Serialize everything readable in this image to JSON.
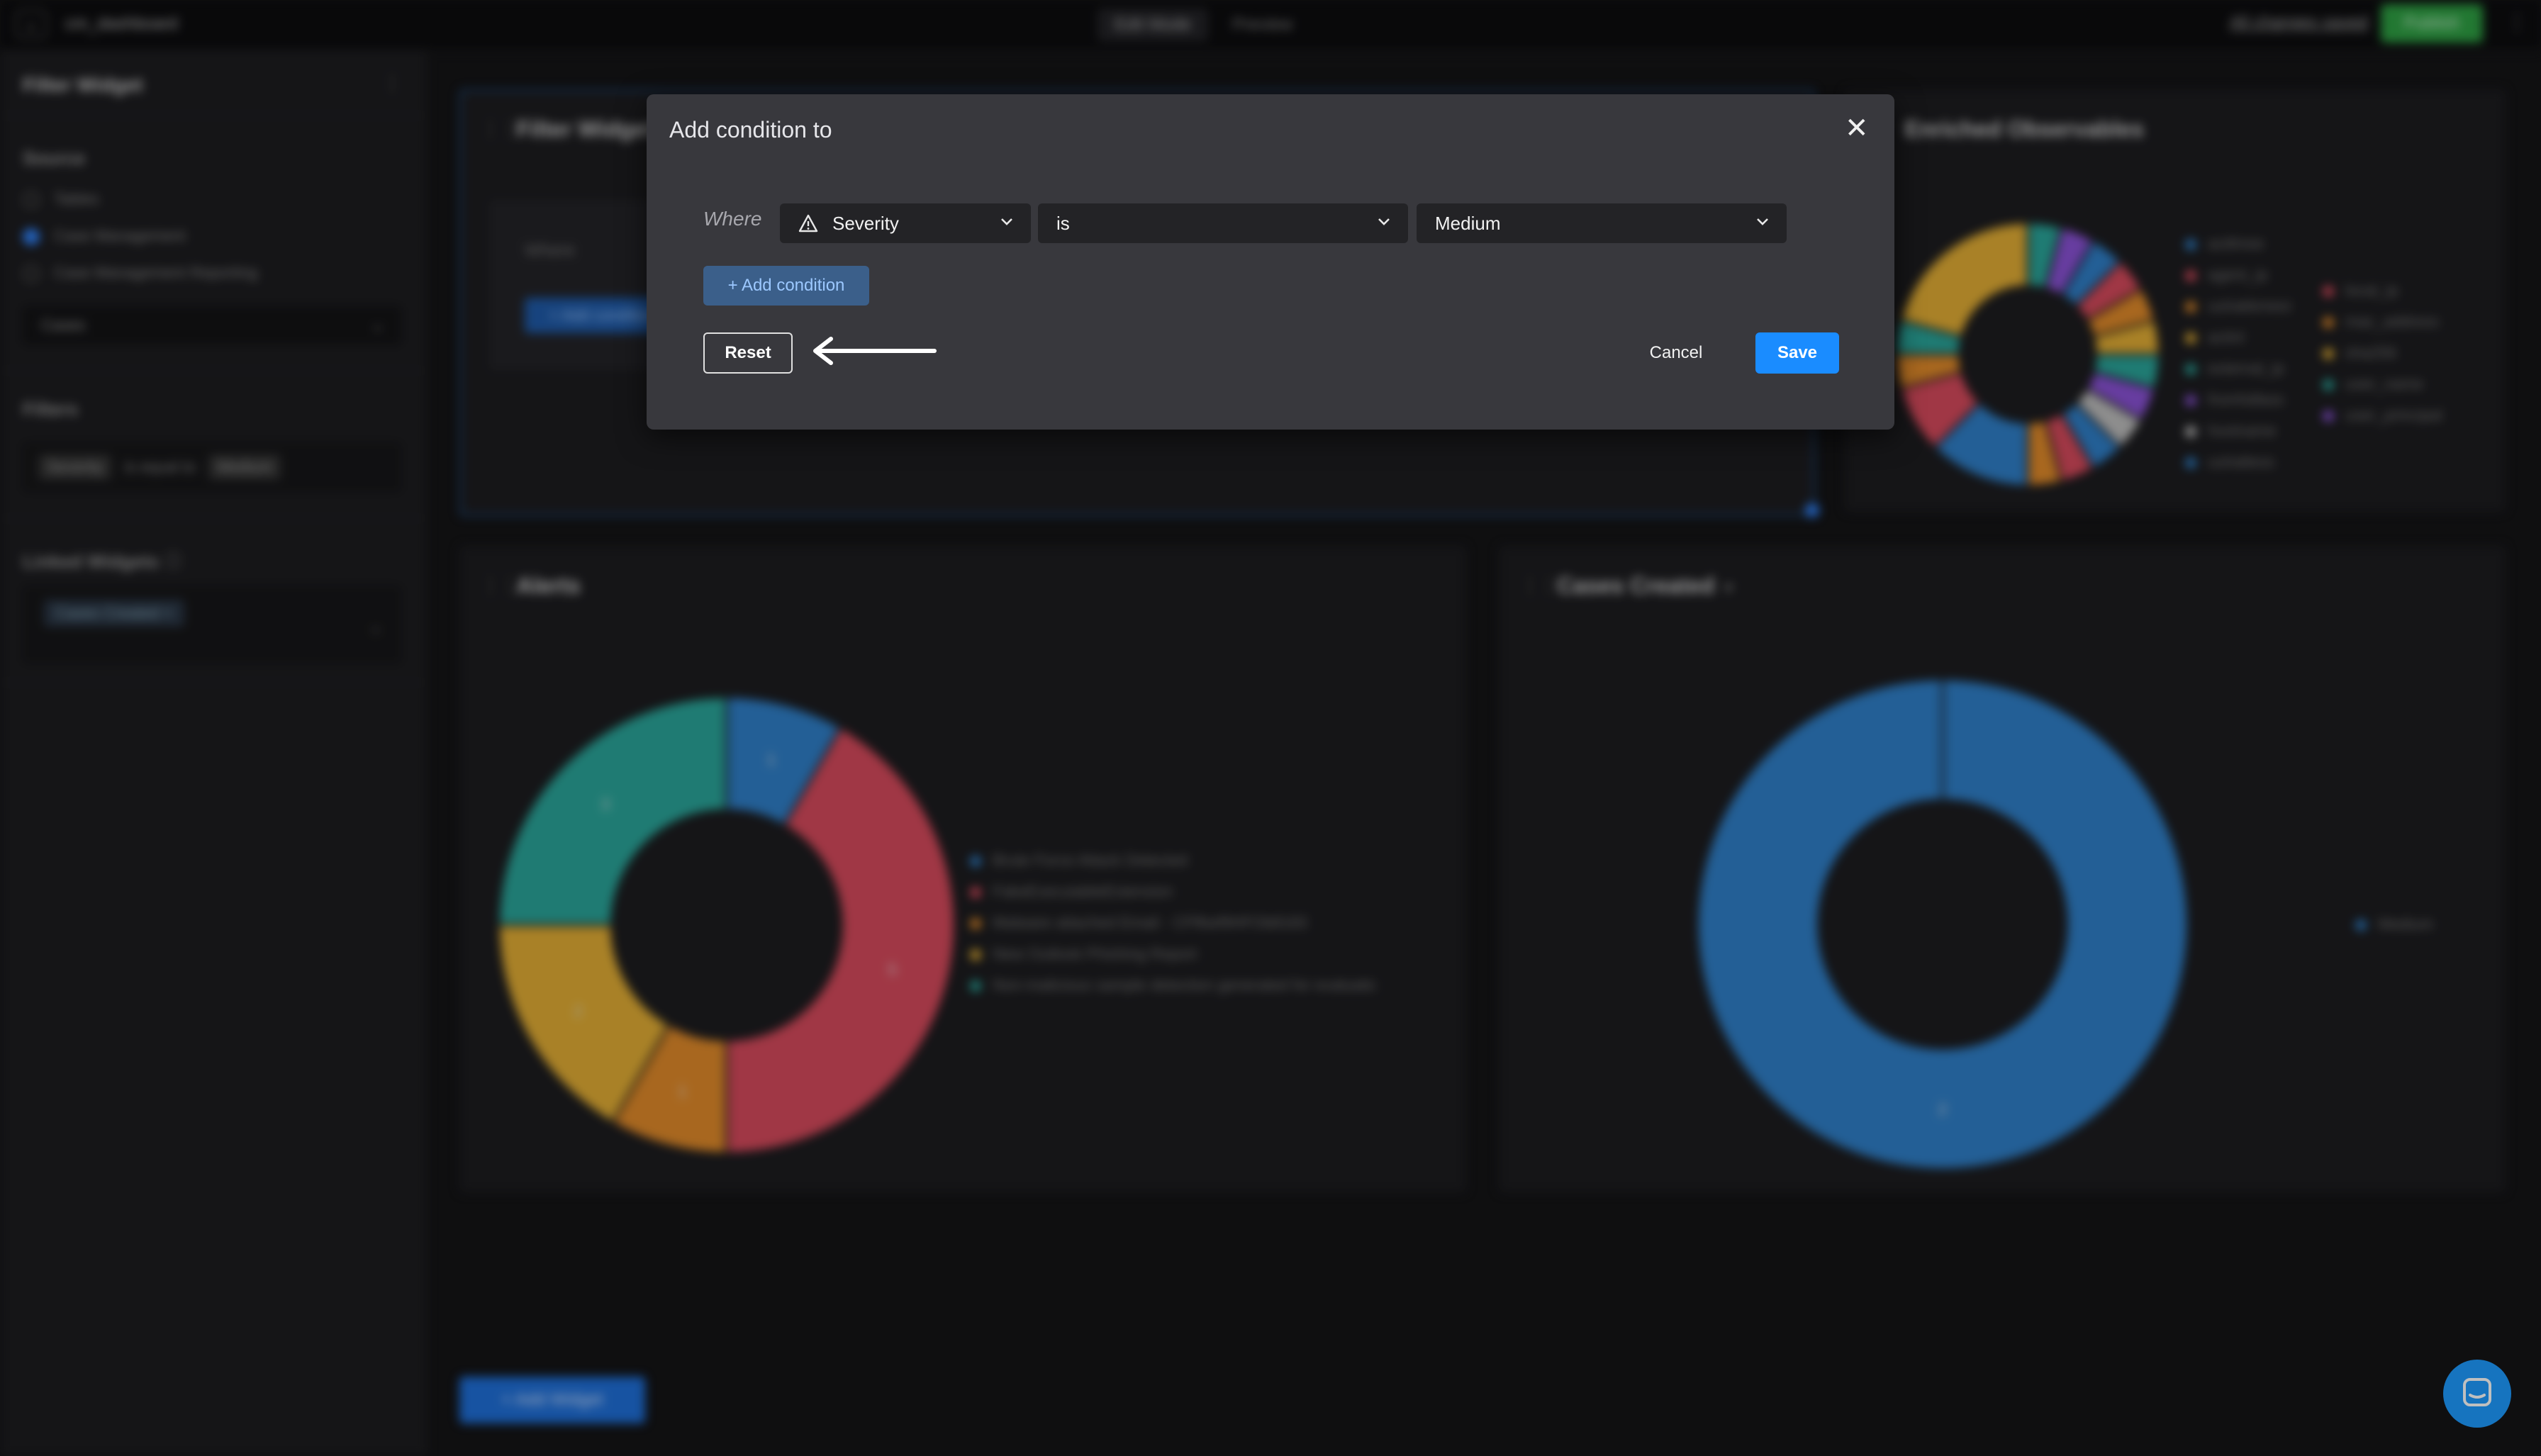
{
  "topbar": {
    "back_icon": "back-arrow-icon",
    "app_title": "cm_dashboard",
    "tabs": [
      "Edit Mode",
      "Preview"
    ],
    "saved_status": "All changes saved",
    "publish_label": "Publish"
  },
  "sidebar": {
    "title": "Filter Widget",
    "source_heading": "Source",
    "sources": [
      "Tables",
      "Case Management",
      "Case Management Reporting"
    ],
    "selected_source": "Case Management",
    "table_select": "Cases",
    "filters_heading": "Filters",
    "filter": {
      "field": "Severity",
      "operator": "is equal to",
      "value": "Medium"
    },
    "linked_heading": "Linked Widgets",
    "linked_chip": "Cases Created"
  },
  "widgets": {
    "filter_widget": {
      "title": "Filter Widget",
      "where": "Where",
      "add_condition": "+ Add condition"
    },
    "enriched": {
      "title": "Enriched Observables",
      "legend_left": [
        "actthree",
        "agent_ip",
        "uuhakkmesi",
        "actinl",
        "external_ip",
        "fromhdlass",
        "hostname",
        "uuhaltess"
      ],
      "legend_right": [
        "local_ip",
        "mac_address",
        "sha256",
        "user_name",
        "user_principal"
      ],
      "colors": [
        "#2f7fc8",
        "#d64a5c",
        "#e08a2a",
        "#e2ad34",
        "#2aa59a",
        "#8a52d6",
        "#bdbdbd",
        "#2f7fc8",
        "#d64a5c",
        "#e08a2a",
        "#2aa59a",
        "#8a52d6"
      ]
    },
    "alerts": {
      "title": "Alerts",
      "chart_data": {
        "type": "pie",
        "labels": [
          "Brute Force Attack Detected",
          "FakeExecutableExtension",
          "Malware attached Email - CFf6wf9HFOb8183",
          "New Outlook Phishing Report",
          "Non-malicious sample detection generated for evaluatic"
        ],
        "values": [
          1,
          5,
          1,
          2,
          3
        ],
        "colors": [
          "#2f7fc8",
          "#d64a5c",
          "#e08a2a",
          "#e2ad34",
          "#2aa59a"
        ]
      }
    },
    "cases_created": {
      "title": "Cases Created",
      "chart_data": {
        "type": "pie",
        "labels": [
          "Medium"
        ],
        "values": [
          2
        ],
        "colors": [
          "#2f7fc8"
        ]
      }
    },
    "add_widget": "+ Add Widget"
  },
  "modal": {
    "title": "Add condition to",
    "where_label": "Where",
    "field": {
      "icon": "warning-triangle-icon",
      "value": "Severity"
    },
    "operator": "is",
    "value": "Medium",
    "add_condition": "+ Add condition",
    "reset": "Reset",
    "cancel": "Cancel",
    "save": "Save"
  }
}
